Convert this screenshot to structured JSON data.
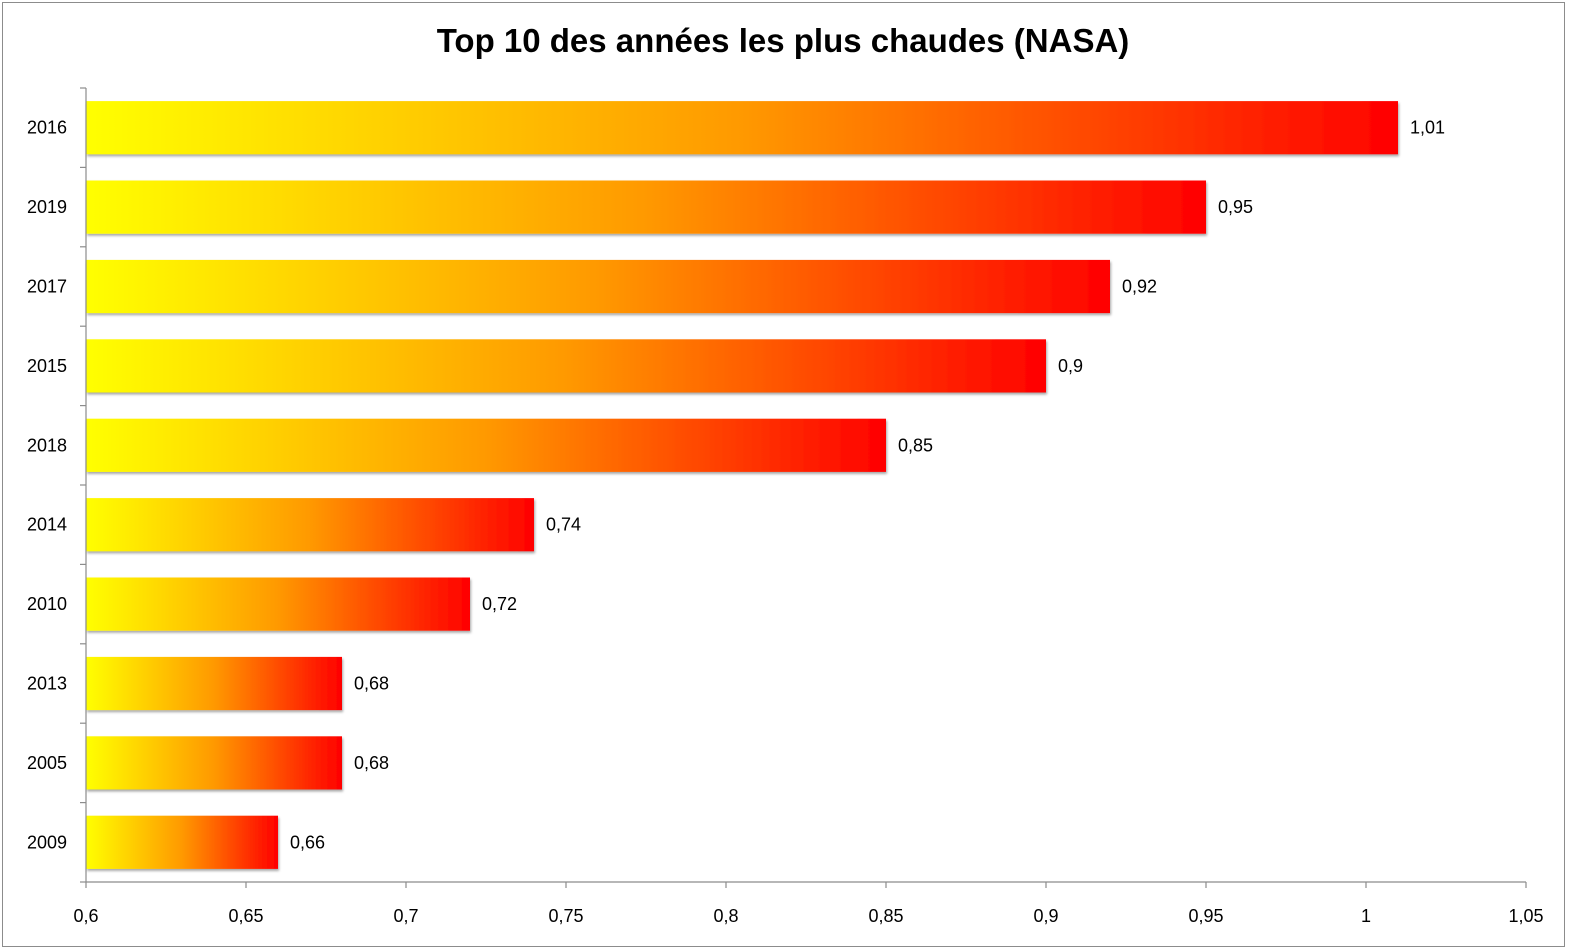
{
  "chart_data": {
    "type": "bar",
    "orientation": "horizontal",
    "title": "Top 10 des années les plus chaudes (NASA)",
    "categories": [
      "2016",
      "2019",
      "2017",
      "2015",
      "2018",
      "2014",
      "2010",
      "2013",
      "2005",
      "2009"
    ],
    "values": [
      1.01,
      0.95,
      0.92,
      0.9,
      0.85,
      0.74,
      0.72,
      0.68,
      0.68,
      0.66
    ],
    "value_labels": [
      "1,01",
      "0,95",
      "0,92",
      "0,9",
      "0,85",
      "0,74",
      "0,72",
      "0,68",
      "0,68",
      "0,66"
    ],
    "xlim": [
      0.6,
      1.05
    ],
    "x_ticks": [
      0.6,
      0.65,
      0.7,
      0.75,
      0.8,
      0.85,
      0.9,
      0.95,
      1,
      1.05
    ],
    "x_tick_labels": [
      "0,6",
      "0,65",
      "0,7",
      "0,75",
      "0,8",
      "0,85",
      "0,9",
      "0,95",
      "1",
      "1,05"
    ],
    "xlabel": "",
    "ylabel": "",
    "grid": false,
    "legend": "none",
    "colors": {
      "gradient_start": "#ffff00",
      "gradient_mid": "#ff9900",
      "gradient_end": "#ff0000"
    }
  }
}
